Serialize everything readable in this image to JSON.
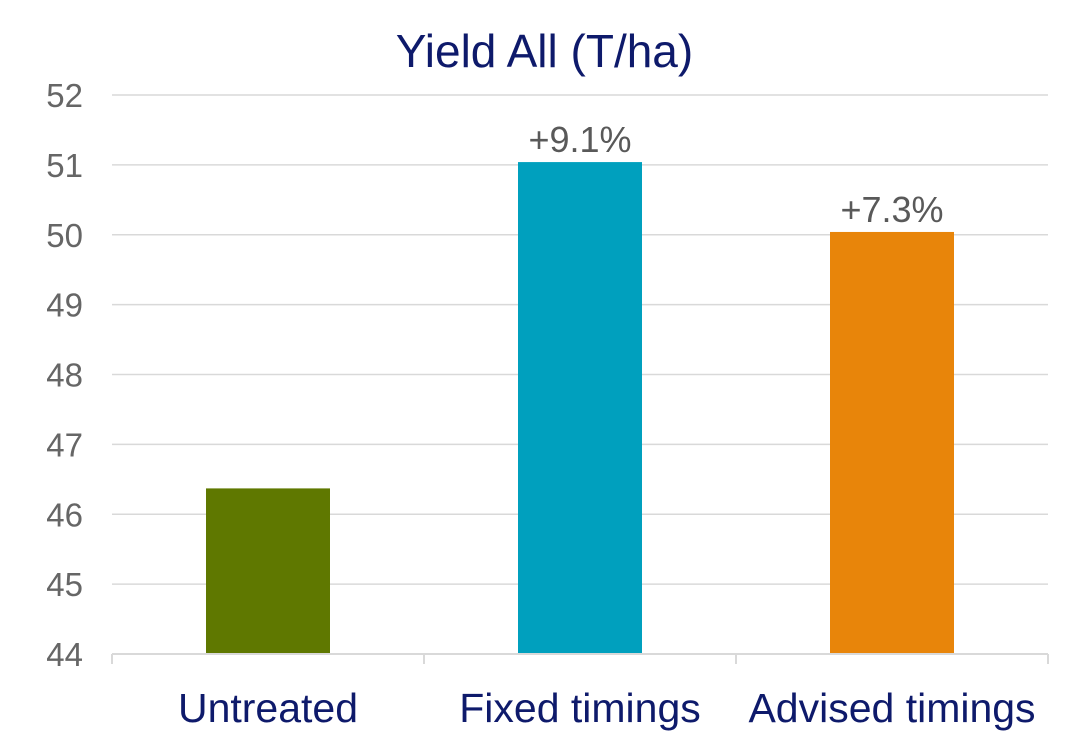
{
  "chart_data": {
    "type": "bar",
    "title": "Yield All (T/ha)",
    "categories": [
      "Untreated",
      "Fixed timings",
      "Advised timings"
    ],
    "values": [
      46.37,
      51.04,
      50.04
    ],
    "data_labels": [
      "",
      "+9.1%",
      "+7.3%"
    ],
    "bar_colors": [
      "#5F7800",
      "#00A0BE",
      "#E8850A"
    ],
    "xlabel": "",
    "ylabel": "",
    "ylim": [
      44,
      52
    ],
    "yticks": [
      "44",
      "45",
      "46",
      "47",
      "48",
      "49",
      "50",
      "51",
      "52"
    ],
    "grid": true,
    "legend": "none",
    "title_color": "#0E1A6B",
    "category_label_color": "#0E1A6B"
  }
}
